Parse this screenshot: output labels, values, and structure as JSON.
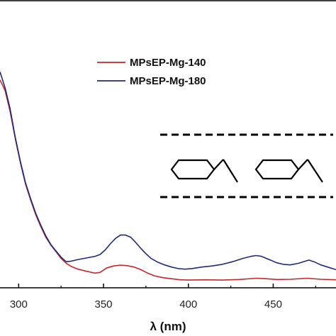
{
  "chart_data": {
    "type": "line",
    "title": "",
    "xlabel": "λ (nm)",
    "ylabel": "",
    "xlim": [
      289,
      487
    ],
    "ylim": [
      0,
      1
    ],
    "x_ticks": [
      300,
      350,
      400,
      450
    ],
    "x_tick_labels": [
      "300",
      "350",
      "400",
      "450"
    ],
    "legend_position": "top-center",
    "grid": false,
    "series": [
      {
        "name": "MPsEP-Mg-140",
        "color": "#c0282d",
        "points": [
          [
            289,
            0.78
          ],
          [
            292,
            0.74
          ],
          [
            295,
            0.66
          ],
          [
            298,
            0.56
          ],
          [
            301,
            0.47
          ],
          [
            304,
            0.39
          ],
          [
            307,
            0.33
          ],
          [
            310,
            0.275
          ],
          [
            313,
            0.23
          ],
          [
            316,
            0.19
          ],
          [
            319,
            0.16
          ],
          [
            322,
            0.135
          ],
          [
            325,
            0.11
          ],
          [
            328,
            0.092
          ],
          [
            331,
            0.08
          ],
          [
            335,
            0.07
          ],
          [
            340,
            0.062
          ],
          [
            345,
            0.055
          ],
          [
            348,
            0.058
          ],
          [
            352,
            0.075
          ],
          [
            356,
            0.082
          ],
          [
            360,
            0.085
          ],
          [
            364,
            0.083
          ],
          [
            368,
            0.078
          ],
          [
            372,
            0.068
          ],
          [
            376,
            0.055
          ],
          [
            380,
            0.045
          ],
          [
            385,
            0.038
          ],
          [
            390,
            0.034
          ],
          [
            395,
            0.03
          ],
          [
            400,
            0.029
          ],
          [
            410,
            0.03
          ],
          [
            420,
            0.029
          ],
          [
            430,
            0.031
          ],
          [
            440,
            0.036
          ],
          [
            446,
            0.034
          ],
          [
            452,
            0.031
          ],
          [
            460,
            0.032
          ],
          [
            470,
            0.036
          ],
          [
            478,
            0.032
          ],
          [
            487,
            0.03
          ]
        ]
      },
      {
        "name": "MPsEP-Mg-180",
        "color": "#1f2a7a",
        "points": [
          [
            289,
            0.81
          ],
          [
            292,
            0.75
          ],
          [
            295,
            0.67
          ],
          [
            298,
            0.565
          ],
          [
            301,
            0.475
          ],
          [
            304,
            0.395
          ],
          [
            307,
            0.335
          ],
          [
            310,
            0.28
          ],
          [
            313,
            0.235
          ],
          [
            316,
            0.195
          ],
          [
            319,
            0.162
          ],
          [
            322,
            0.138
          ],
          [
            325,
            0.115
          ],
          [
            328,
            0.098
          ],
          [
            331,
            0.1
          ],
          [
            335,
            0.106
          ],
          [
            340,
            0.112
          ],
          [
            345,
            0.118
          ],
          [
            348,
            0.125
          ],
          [
            351,
            0.142
          ],
          [
            354,
            0.165
          ],
          [
            357,
            0.185
          ],
          [
            360,
            0.198
          ],
          [
            363,
            0.198
          ],
          [
            366,
            0.19
          ],
          [
            369,
            0.17
          ],
          [
            372,
            0.148
          ],
          [
            375,
            0.128
          ],
          [
            378,
            0.11
          ],
          [
            382,
            0.096
          ],
          [
            386,
            0.086
          ],
          [
            390,
            0.078
          ],
          [
            394,
            0.072
          ],
          [
            398,
            0.07
          ],
          [
            402,
            0.072
          ],
          [
            408,
            0.078
          ],
          [
            414,
            0.082
          ],
          [
            420,
            0.088
          ],
          [
            426,
            0.098
          ],
          [
            432,
            0.11
          ],
          [
            437,
            0.118
          ],
          [
            440,
            0.121
          ],
          [
            443,
            0.118
          ],
          [
            448,
            0.105
          ],
          [
            452,
            0.094
          ],
          [
            456,
            0.088
          ],
          [
            460,
            0.086
          ],
          [
            465,
            0.092
          ],
          [
            469,
            0.1
          ],
          [
            471,
            0.104
          ],
          [
            474,
            0.098
          ],
          [
            478,
            0.086
          ],
          [
            482,
            0.078
          ],
          [
            487,
            0.068
          ]
        ]
      }
    ]
  },
  "inset": {
    "description_icon": "two-styrene-repeat-unit-structures",
    "dash_color": "#000000"
  }
}
